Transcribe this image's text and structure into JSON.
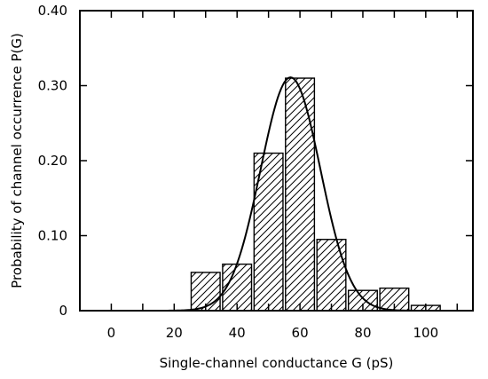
{
  "chart_data": {
    "type": "bar",
    "title": "",
    "xlabel": "Single-channel conductance G (pS)",
    "ylabel": "Probability of channel occurrence P(G)",
    "xlim": [
      -10,
      115
    ],
    "ylim": [
      0,
      0.4
    ],
    "x_ticks": [
      0,
      20,
      40,
      60,
      80,
      100
    ],
    "x_tick_labels": [
      "0",
      "20",
      "40",
      "60",
      "80",
      "100"
    ],
    "y_ticks": [
      0,
      0.1,
      0.2,
      0.3,
      0.4
    ],
    "y_tick_labels": [
      "0",
      "0.10",
      "0.20",
      "0.30",
      "0.40"
    ],
    "bin_width": 10,
    "categories": [
      "30",
      "40",
      "50",
      "60",
      "70",
      "80",
      "90",
      "100"
    ],
    "x": [
      30,
      40,
      50,
      60,
      70,
      80,
      90,
      100
    ],
    "values": [
      0.051,
      0.062,
      0.21,
      0.31,
      0.095,
      0.027,
      0.03,
      0.007
    ],
    "fit_curve": {
      "type": "gaussian",
      "peak": 0.311,
      "mean": 57,
      "sd": 9.5
    },
    "grid": false,
    "legend": "none",
    "bar_fill": "diagonal-hatch",
    "colors": {
      "bar_stroke": "#000000",
      "curve": "#000000",
      "background": "#ffffff"
    }
  }
}
